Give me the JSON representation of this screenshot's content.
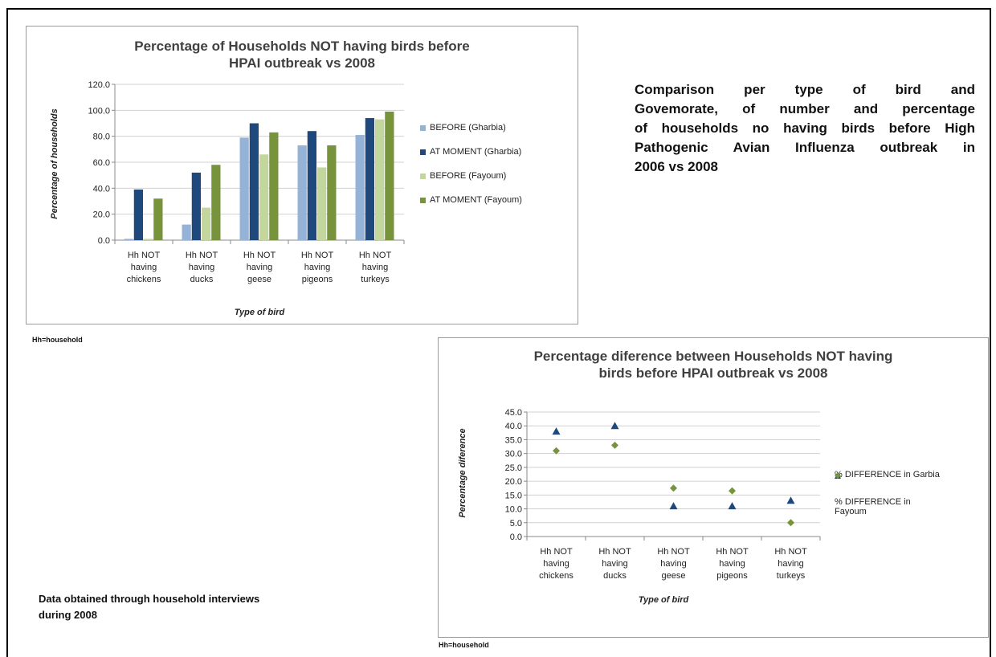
{
  "charts": [
    {
      "type": "bar",
      "title": "Percentage of Households NOT having birds before HPAI outbreak vs 2008",
      "title_lines": [
        "Percentage of Households NOT having birds before",
        "HPAI outbreak vs 2008"
      ],
      "xlabel": "Type of bird",
      "ylabel": "Percentage of households",
      "ylim": [
        0,
        120
      ],
      "yticks": [
        "0.0",
        "20.0",
        "40.0",
        "60.0",
        "80.0",
        "100.0",
        "120.0"
      ],
      "grid": true,
      "legend_position": "right",
      "categories": [
        [
          "Hh NOT",
          "having",
          "chickens"
        ],
        [
          "Hh NOT",
          "having",
          "ducks"
        ],
        [
          "Hh NOT",
          "having",
          "geese"
        ],
        [
          "Hh NOT",
          "having",
          "pigeons"
        ],
        [
          "Hh NOT",
          "having",
          "turkeys"
        ]
      ],
      "series": [
        {
          "name": "BEFORE (Gharbia)",
          "color": "#95b3d7",
          "values": [
            1,
            12,
            79,
            73,
            81
          ]
        },
        {
          "name": "AT MOMENT (Gharbia)",
          "color": "#1f497d",
          "values": [
            39,
            52,
            90,
            84,
            94
          ]
        },
        {
          "name": "BEFORE (Fayoum)",
          "color": "#c3d69b",
          "values": [
            1,
            25,
            66,
            56,
            93
          ]
        },
        {
          "name": "AT MOMENT (Fayoum)",
          "color": "#77933c",
          "values": [
            32,
            58,
            83,
            73,
            99
          ]
        }
      ]
    },
    {
      "type": "scatter",
      "title": "Percentage diference between Households NOT having birds before HPAI outbreak vs 2008",
      "title_lines": [
        "Percentage diference between Households  NOT having",
        "birds before HPAI outbreak vs 2008"
      ],
      "xlabel": "Type of bird",
      "ylabel": "Percentage diference",
      "ylim": [
        0,
        45
      ],
      "yticks": [
        "0.0",
        "5.0",
        "10.0",
        "15.0",
        "20.0",
        "25.0",
        "30.0",
        "35.0",
        "40.0",
        "45.0"
      ],
      "grid": true,
      "legend_position": "right",
      "categories": [
        [
          "Hh NOT",
          "having",
          "chickens"
        ],
        [
          "Hh NOT",
          "having",
          "ducks"
        ],
        [
          "Hh NOT",
          "having",
          "geese"
        ],
        [
          "Hh NOT",
          "having",
          "pigeons"
        ],
        [
          "Hh NOT",
          "having",
          "turkeys"
        ]
      ],
      "series": [
        {
          "name": "% DIFFERENCE in Garbia",
          "legend_lines": [
            "% DIFFERENCE in Garbia"
          ],
          "marker": "triangle",
          "color": "#1f497d",
          "values": [
            38,
            40,
            11,
            11,
            13
          ]
        },
        {
          "name": "% DIFFERENCE  in Fayoum",
          "legend_lines": [
            "% DIFFERENCE  in",
            "Fayoum"
          ],
          "marker": "diamond",
          "color": "#77933c",
          "values": [
            31,
            33,
            17.5,
            16.5,
            5
          ]
        }
      ]
    }
  ],
  "notes": {
    "description": "Comparison per type of bird and Govemorate, of number and percentage of households no having birds before High Pathogenic Avian Influenza outbreak in 2006 vs 2008",
    "description_lines": [
      "Comparison per type of bird and",
      "Govemorate, of number and percentage",
      "of households no having birds before High",
      "Pathogenic Avian Influenza outbreak in",
      "2006 vs 2008"
    ],
    "footnote_1": "Hh=household",
    "footnote_2": "Hh=household",
    "source_lines": [
      "Data obtained through household interviews",
      "during 2008"
    ]
  }
}
